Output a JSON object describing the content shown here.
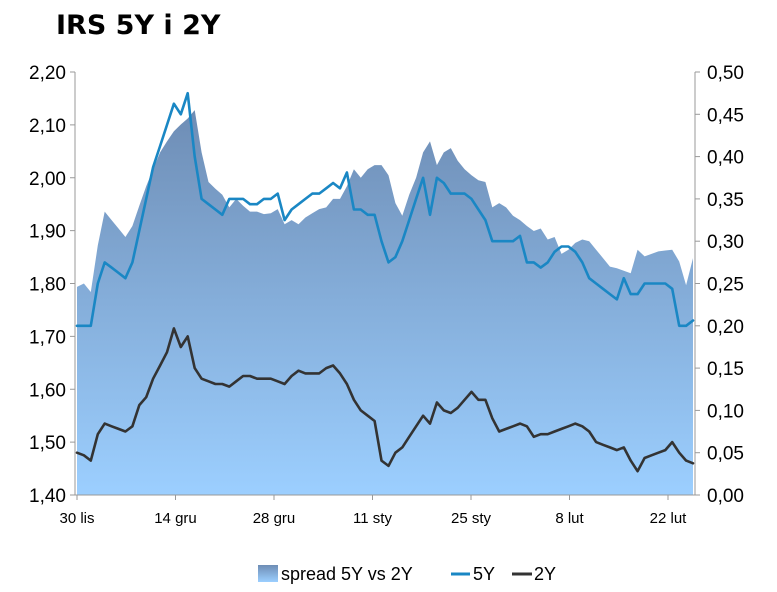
{
  "title": "IRS 5Y i 2Y",
  "colors": {
    "spread_top": "#6e8db5",
    "spread_bottom": "#9ccfff",
    "line_5y": "#1a87c4",
    "line_2y": "#333333",
    "axis": "#999999"
  },
  "chart_data": {
    "type": "line",
    "title": "IRS 5Y i 2Y",
    "grid": false,
    "legend_position": "bottom",
    "x_tick_labels": [
      "30 lis",
      "14 gru",
      "28 gru",
      "11 sty",
      "25 sty",
      "8 lut",
      "22 lut"
    ],
    "left_axis": {
      "ylim": [
        1.4,
        2.2
      ],
      "ticks": [
        "1,40",
        "1,50",
        "1,60",
        "1,70",
        "1,80",
        "1,90",
        "2,00",
        "2,10",
        "2,20"
      ]
    },
    "right_axis": {
      "ylim": [
        0.0,
        0.5
      ],
      "ticks": [
        "0,00",
        "0,05",
        "0,10",
        "0,15",
        "0,20",
        "0,25",
        "0,30",
        "0,35",
        "0,40",
        "0,45",
        "0,50"
      ]
    },
    "x": [
      0,
      1,
      2,
      3,
      4,
      5,
      6,
      7,
      8,
      9,
      10,
      11,
      12,
      13,
      14,
      15,
      16,
      17,
      18,
      19,
      20,
      21,
      22,
      23,
      24,
      25,
      26,
      27,
      28,
      29,
      30,
      31,
      32,
      33,
      34,
      35,
      36,
      37,
      38,
      39,
      40,
      41,
      42,
      43,
      44,
      45,
      46,
      47,
      48,
      49,
      50,
      51,
      52,
      53,
      54,
      55,
      56,
      57,
      58,
      59,
      60,
      61,
      62,
      63,
      64,
      65,
      66,
      67,
      68,
      69,
      70,
      71,
      72,
      73,
      74,
      75,
      76,
      77,
      78,
      79,
      80,
      81,
      82,
      83,
      84,
      85,
      86,
      87,
      88,
      89
    ],
    "series": [
      {
        "name": "spread 5Y vs 2Y",
        "axis": "right",
        "type": "area",
        "values": [
          0.246,
          0.25,
          0.24,
          0.295,
          0.335,
          0.325,
          0.315,
          0.305,
          0.318,
          0.342,
          0.365,
          0.385,
          0.405,
          0.418,
          0.43,
          0.438,
          0.445,
          0.455,
          0.405,
          0.37,
          0.362,
          0.355,
          0.34,
          0.35,
          0.342,
          0.335,
          0.335,
          0.332,
          0.333,
          0.338,
          0.32,
          0.325,
          0.32,
          0.328,
          0.333,
          0.338,
          0.34,
          0.35,
          0.35,
          0.365,
          0.385,
          0.375,
          0.385,
          0.39,
          0.39,
          0.378,
          0.345,
          0.33,
          0.355,
          0.375,
          0.405,
          0.418,
          0.39,
          0.405,
          0.41,
          0.395,
          0.385,
          0.378,
          0.372,
          0.37,
          0.34,
          0.345,
          0.34,
          0.33,
          0.325,
          0.318,
          0.312,
          0.315,
          0.302,
          0.305,
          0.285,
          0.29,
          0.298,
          0.302,
          0.3,
          0.29,
          0.28,
          0.27,
          0.268,
          0.265,
          0.262,
          0.29,
          0.282,
          0.285,
          0.288,
          0.289,
          0.29,
          0.276,
          0.248,
          0.28
        ]
      },
      {
        "name": "5Y",
        "axis": "left",
        "type": "line",
        "values": [
          1.72,
          1.72,
          1.72,
          1.8,
          1.84,
          1.83,
          1.82,
          1.81,
          1.84,
          1.9,
          1.96,
          2.02,
          2.06,
          2.1,
          2.14,
          2.12,
          2.16,
          2.04,
          1.96,
          1.95,
          1.94,
          1.93,
          1.96,
          1.96,
          1.96,
          1.95,
          1.95,
          1.96,
          1.96,
          1.97,
          1.92,
          1.94,
          1.95,
          1.96,
          1.97,
          1.97,
          1.98,
          1.99,
          1.98,
          2.01,
          1.94,
          1.94,
          1.93,
          1.93,
          1.88,
          1.84,
          1.85,
          1.88,
          1.92,
          1.96,
          2.0,
          1.93,
          2.0,
          1.99,
          1.97,
          1.97,
          1.97,
          1.96,
          1.94,
          1.92,
          1.88,
          1.88,
          1.88,
          1.88,
          1.89,
          1.84,
          1.84,
          1.83,
          1.84,
          1.86,
          1.87,
          1.87,
          1.86,
          1.84,
          1.81,
          1.8,
          1.79,
          1.78,
          1.77,
          1.81,
          1.78,
          1.78,
          1.8,
          1.8,
          1.8,
          1.8,
          1.79,
          1.72,
          1.72,
          1.73
        ]
      },
      {
        "name": "2Y",
        "axis": "left",
        "type": "line",
        "values": [
          1.48,
          1.475,
          1.465,
          1.515,
          1.535,
          1.53,
          1.525,
          1.52,
          1.53,
          1.57,
          1.585,
          1.62,
          1.645,
          1.67,
          1.715,
          1.68,
          1.7,
          1.64,
          1.62,
          1.615,
          1.61,
          1.61,
          1.605,
          1.615,
          1.625,
          1.625,
          1.62,
          1.62,
          1.62,
          1.615,
          1.61,
          1.625,
          1.635,
          1.63,
          1.63,
          1.63,
          1.64,
          1.645,
          1.63,
          1.61,
          1.58,
          1.56,
          1.55,
          1.54,
          1.465,
          1.455,
          1.48,
          1.49,
          1.51,
          1.53,
          1.55,
          1.535,
          1.575,
          1.56,
          1.555,
          1.565,
          1.58,
          1.595,
          1.58,
          1.58,
          1.545,
          1.52,
          1.525,
          1.53,
          1.535,
          1.53,
          1.51,
          1.515,
          1.515,
          1.52,
          1.525,
          1.53,
          1.535,
          1.53,
          1.52,
          1.5,
          1.495,
          1.49,
          1.485,
          1.49,
          1.465,
          1.445,
          1.47,
          1.475,
          1.48,
          1.485,
          1.5,
          1.48,
          1.465,
          1.46
        ]
      }
    ]
  }
}
